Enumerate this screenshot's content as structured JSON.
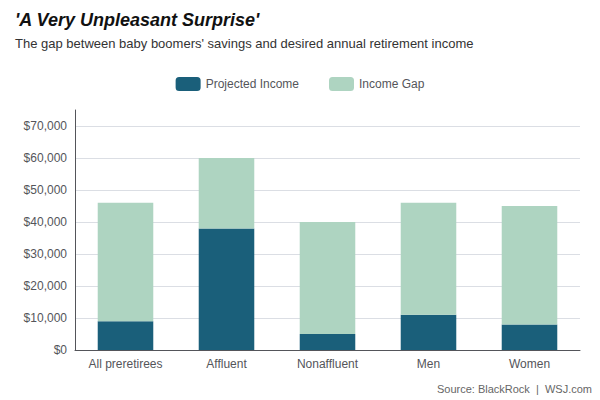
{
  "chart_data": {
    "type": "bar",
    "title": "'A Very Unpleasant Surprise'",
    "subtitle": "The gap between baby boomers' savings and desired annual retirement income",
    "annotations": [
      "Source: BlackRock  |  WSJ.com"
    ],
    "categories": [
      "All preretirees",
      "Affluent",
      "Nonaffluent",
      "Men",
      "Women"
    ],
    "series": [
      {
        "name": "Projected Income",
        "color": "#1a5f7a",
        "values": [
          9000,
          38000,
          5000,
          11000,
          8000
        ]
      },
      {
        "name": "Income Gap",
        "color": "#aed4c1",
        "values": [
          37000,
          22000,
          35000,
          35000,
          37000
        ]
      }
    ],
    "stacked": true,
    "ylim": [
      0,
      75000
    ],
    "yticks": [
      {
        "value": 0,
        "label": "$0"
      },
      {
        "value": 10000,
        "label": "$10,000"
      },
      {
        "value": 20000,
        "label": "$20,000"
      },
      {
        "value": 30000,
        "label": "$30,000"
      },
      {
        "value": 40000,
        "label": "$40,000"
      },
      {
        "value": 50000,
        "label": "$50,000"
      },
      {
        "value": 60000,
        "label": "$60,000"
      },
      {
        "value": 70000,
        "label": "$70,000"
      }
    ],
    "grid": true,
    "legend": "top"
  }
}
